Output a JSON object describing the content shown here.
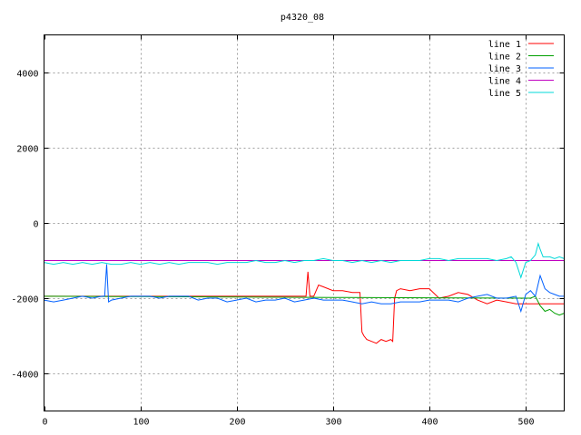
{
  "chart_data": {
    "type": "line",
    "title": "p4320_08",
    "xlabel": "",
    "ylabel": "",
    "xlim": [
      0,
      540
    ],
    "ylim": [
      -5000,
      5000
    ],
    "xticks": [
      0,
      100,
      200,
      300,
      400,
      500
    ],
    "yticks": [
      -4000,
      -2000,
      0,
      2000,
      4000
    ],
    "grid": true,
    "legend_position": "top-right",
    "series": [
      {
        "name": "line 1",
        "color": "#ff0000",
        "x": [
          0,
          270,
          272,
          274,
          276,
          280,
          285,
          290,
          300,
          310,
          320,
          328,
          330,
          332,
          335,
          340,
          345,
          350,
          355,
          360,
          362,
          364,
          366,
          370,
          380,
          390,
          400,
          410,
          420,
          430,
          440,
          450,
          460,
          470,
          480,
          490,
          500,
          510,
          520,
          530,
          540
        ],
        "y": [
          -1950,
          -1950,
          -1950,
          -1300,
          -1950,
          -1950,
          -1650,
          -1700,
          -1800,
          -1800,
          -1850,
          -1850,
          -2900,
          -3000,
          -3100,
          -3150,
          -3200,
          -3100,
          -3150,
          -3100,
          -3150,
          -2000,
          -1800,
          -1750,
          -1800,
          -1750,
          -1750,
          -2000,
          -1950,
          -1850,
          -1900,
          -2050,
          -2150,
          -2050,
          -2100,
          -2150,
          -2150,
          -2150,
          -2150,
          -2150,
          -2150
        ]
      },
      {
        "name": "line 2",
        "color": "#00a000",
        "x": [
          0,
          100,
          200,
          300,
          400,
          500,
          505,
          510,
          515,
          520,
          525,
          530,
          535,
          540
        ],
        "y": [
          -1950,
          -1960,
          -1970,
          -1980,
          -1990,
          -2000,
          -2000,
          -1950,
          -2200,
          -2350,
          -2300,
          -2400,
          -2450,
          -2400
        ]
      },
      {
        "name": "line 3",
        "color": "#0060ff",
        "x": [
          0,
          10,
          20,
          30,
          40,
          50,
          60,
          63,
          65,
          67,
          70,
          80,
          90,
          100,
          110,
          120,
          130,
          140,
          150,
          160,
          170,
          180,
          190,
          200,
          210,
          220,
          230,
          240,
          250,
          260,
          270,
          280,
          290,
          300,
          310,
          320,
          330,
          340,
          350,
          360,
          370,
          380,
          390,
          400,
          410,
          420,
          430,
          440,
          450,
          460,
          470,
          480,
          490,
          495,
          500,
          505,
          510,
          515,
          520,
          525,
          530,
          535,
          540
        ],
        "y": [
          -2050,
          -2100,
          -2050,
          -2000,
          -1950,
          -2000,
          -1950,
          -1950,
          -1100,
          -2100,
          -2050,
          -2000,
          -1950,
          -1950,
          -1950,
          -2000,
          -1950,
          -1950,
          -1950,
          -2050,
          -2000,
          -2000,
          -2100,
          -2050,
          -2000,
          -2100,
          -2050,
          -2050,
          -2000,
          -2100,
          -2050,
          -2000,
          -2050,
          -2050,
          -2050,
          -2100,
          -2150,
          -2100,
          -2150,
          -2150,
          -2100,
          -2100,
          -2100,
          -2050,
          -2050,
          -2050,
          -2100,
          -2000,
          -1950,
          -1900,
          -2000,
          -2000,
          -1950,
          -2350,
          -1900,
          -1800,
          -1950,
          -1400,
          -1750,
          -1850,
          -1900,
          -1950,
          -1950
        ]
      },
      {
        "name": "line 4",
        "color": "#c000c0",
        "x": [
          0,
          540
        ],
        "y": [
          -1000,
          -1000
        ]
      },
      {
        "name": "line 5",
        "color": "#00d8d8",
        "x": [
          0,
          10,
          20,
          30,
          40,
          50,
          60,
          70,
          80,
          90,
          100,
          110,
          120,
          130,
          140,
          150,
          160,
          170,
          180,
          190,
          200,
          210,
          220,
          230,
          240,
          250,
          260,
          270,
          280,
          290,
          300,
          310,
          320,
          330,
          340,
          350,
          360,
          370,
          380,
          390,
          400,
          410,
          420,
          430,
          440,
          450,
          460,
          470,
          480,
          485,
          490,
          495,
          500,
          505,
          510,
          513,
          515,
          518,
          520,
          525,
          530,
          535,
          540
        ],
        "y": [
          -1050,
          -1100,
          -1050,
          -1100,
          -1050,
          -1100,
          -1050,
          -1100,
          -1100,
          -1050,
          -1100,
          -1050,
          -1100,
          -1050,
          -1100,
          -1050,
          -1050,
          -1050,
          -1100,
          -1050,
          -1050,
          -1050,
          -1000,
          -1050,
          -1050,
          -1000,
          -1050,
          -1000,
          -1000,
          -950,
          -1000,
          -1000,
          -1050,
          -1000,
          -1050,
          -1000,
          -1050,
          -1000,
          -1000,
          -1000,
          -950,
          -950,
          -1000,
          -950,
          -950,
          -950,
          -950,
          -1000,
          -950,
          -900,
          -1050,
          -1450,
          -1050,
          -1000,
          -850,
          -550,
          -700,
          -900,
          -900,
          -900,
          -950,
          -900,
          -950
        ]
      }
    ]
  }
}
